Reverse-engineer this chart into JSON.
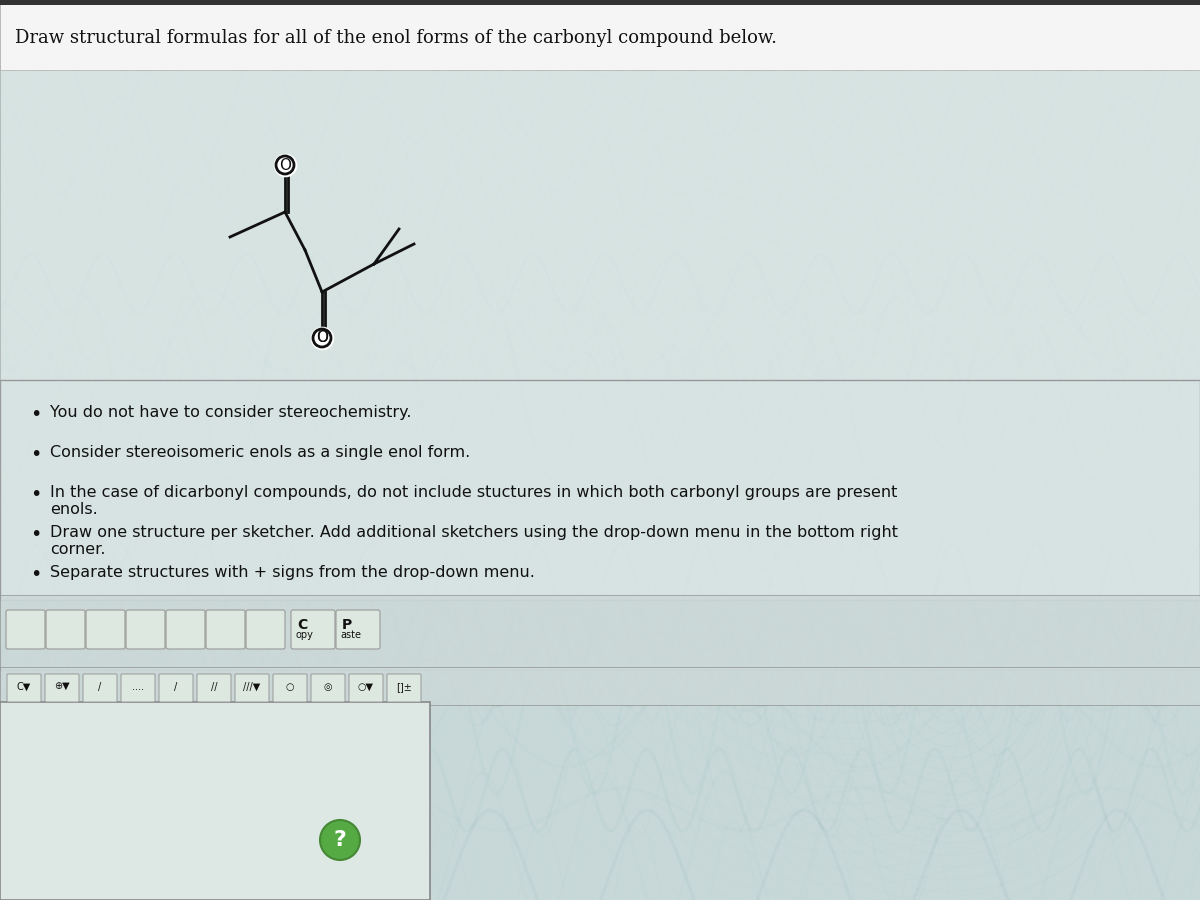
{
  "title": "Draw structural formulas for all of the enol forms of the carbonyl compound below.",
  "bullet_points": [
    "You do not have to consider stereochemistry.",
    "Consider stereoisomeric enols as a single enol form.",
    "In the case of dicarbonyl compounds, do not include stuctures in which both carbonyl groups are present\nenols.",
    "Draw one structure per sketcher. Add additional sketchers using the drop-down menu in the bottom right\ncorner.",
    "Separate structures with + signs from the drop-down menu."
  ],
  "copy_paste_text": [
    "C\nopy",
    "P\naste"
  ],
  "bg_color": "#c8d8d8",
  "wavy_color1": "#b0c8c8",
  "wavy_color2": "#d0e0e0",
  "title_bg": "#ffffff",
  "panel_bg": "#e8f0f0",
  "toolbar_bg": "#e0e8e8",
  "sketcher_bg": "#d8e8e8",
  "text_color": "#111111",
  "line_color": "#000000",
  "title_fontsize": 13,
  "bullet_fontsize": 11.5
}
